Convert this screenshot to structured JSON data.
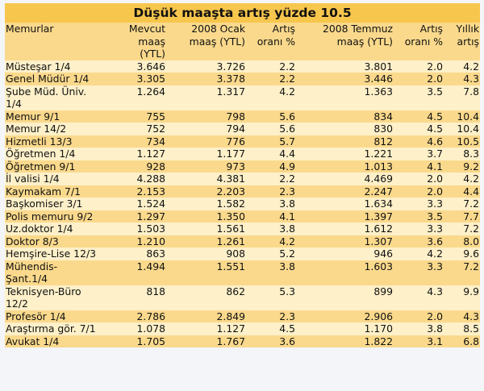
{
  "title": "Düşük maaşta artış yüzde 10.5",
  "columns": [
    [
      "Memurlar",
      ""
    ],
    [
      "Mevcut maaş",
      "(YTL)"
    ],
    [
      "2008 Ocak",
      "maaş (YTL)"
    ],
    [
      "Artış",
      "oranı %"
    ],
    [
      "2008 Temmuz",
      "maaş (YTL)"
    ],
    [
      "Artış",
      "oranı %"
    ],
    [
      "Yıllık",
      "artış"
    ]
  ],
  "rows": [
    [
      "Müsteşar 1/4",
      "3.646",
      "3.726",
      "2.2",
      "3.801",
      "2.0",
      "4.2"
    ],
    [
      "Genel Müdür 1/4",
      "3.305",
      "3.378",
      "2.2",
      "3.446",
      "2.0",
      "4.3"
    ],
    [
      "Şube Müd. Üniv. 1/4",
      "1.264",
      "1.317",
      "4.2",
      "1.363",
      "3.5",
      "7.8"
    ],
    [
      "Memur 9/1",
      "755",
      "798",
      "5.6",
      "834",
      "4.5",
      "10.4"
    ],
    [
      "Memur 14/2",
      "752",
      "794",
      "5.6",
      "830",
      "4.5",
      "10.4"
    ],
    [
      "Hizmetli 13/3",
      "734",
      "776",
      "5.7",
      "812",
      "4.6",
      "10.5"
    ],
    [
      "Öğretmen 1/4",
      "1.127",
      "1.177",
      "4.4",
      "1.221",
      "3.7",
      "8.3"
    ],
    [
      "Öğretmen 9/1",
      "928",
      "973",
      "4.9",
      "1.013",
      "4.1",
      "9.2"
    ],
    [
      "İl valisi 1/4",
      "4.288",
      "4.381",
      "2.2",
      "4.469",
      "2.0",
      "4.2"
    ],
    [
      "Kaymakam 7/1",
      "2.153",
      "2.203",
      "2.3",
      "2.247",
      "2.0",
      "4.4"
    ],
    [
      "Başkomiser 3/1",
      "1.524",
      "1.582",
      "3.8",
      "1.634",
      "3.3",
      "7.2"
    ],
    [
      "Polis memuru 9/2",
      "1.297",
      "1.350",
      "4.1",
      "1.397",
      "3.5",
      "7.7"
    ],
    [
      "Uz.doktor 1/4",
      "1.503",
      "1.561",
      "3.8",
      "1.612",
      "3.3",
      "7.2"
    ],
    [
      "Doktor 8/3",
      "1.210",
      "1.261",
      "4.2",
      "1.307",
      "3.6",
      "8.0"
    ],
    [
      "Hemşire-Lise 12/3",
      "863",
      "908",
      "5.2",
      "946",
      "4.2",
      "9.6"
    ],
    [
      "Mühendis-Şant.1/4",
      "1.494",
      "1.551",
      "3.8",
      "1.603",
      "3.3",
      "7.2"
    ],
    [
      "Teknisyen-Büro 12/2",
      "818",
      "862",
      "5.3",
      "899",
      "4.3",
      "9.9"
    ],
    [
      "Profesör 1/4",
      "2.786",
      "2.849",
      "2.3",
      "2.906",
      "2.0",
      "4.3"
    ],
    [
      "Araştırma gör. 7/1",
      "1.078",
      "1.127",
      "4.5",
      "1.170",
      "3.8",
      "8.5"
    ],
    [
      "Avukat 1/4",
      "1.705",
      "1.767",
      "3.6",
      "1.822",
      "3.1",
      "6.8"
    ]
  ],
  "colors": {
    "title_bg": "#f7c64c",
    "dark_row": "#fad98c",
    "light_row": "#fef0c9"
  }
}
